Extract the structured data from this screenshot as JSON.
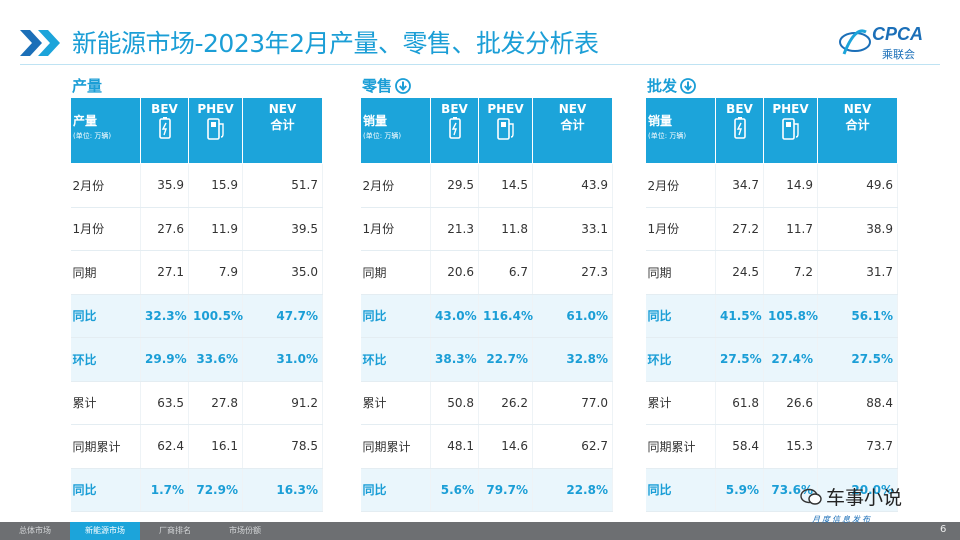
{
  "header": {
    "title": "新能源市场-2023年2月产量、零售、批发分析表",
    "logo": "CPCA",
    "logo_sub": "乘联会"
  },
  "tables": [
    {
      "section": "产量",
      "label": "产量",
      "unit": "(单位: 万辆)",
      "columns": [
        {
          "name": "BEV"
        },
        {
          "name": "PHEV"
        },
        {
          "name": "NEV",
          "sub": "合计"
        }
      ],
      "rows": [
        [
          "2月份",
          "35.9",
          "15.9",
          "51.7"
        ],
        [
          "1月份",
          "27.6",
          "11.9",
          "39.5"
        ],
        [
          "同期",
          "27.1",
          "7.9",
          "35.0"
        ],
        [
          "同比",
          "32.3%",
          "100.5%",
          "47.7%"
        ],
        [
          "环比",
          "29.9%",
          "33.6%",
          "31.0%"
        ],
        [
          "累计",
          "63.5",
          "27.8",
          "91.2"
        ],
        [
          "同期累计",
          "62.4",
          "16.1",
          "78.5"
        ],
        [
          "同比",
          "1.7%",
          "72.9%",
          "16.3%"
        ]
      ]
    },
    {
      "section": "零售",
      "label": "销量",
      "unit": "(单位: 万辆)",
      "columns": [
        {
          "name": "BEV"
        },
        {
          "name": "PHEV"
        },
        {
          "name": "NEV",
          "sub": "合计"
        }
      ],
      "rows": [
        [
          "2月份",
          "29.5",
          "14.5",
          "43.9"
        ],
        [
          "1月份",
          "21.3",
          "11.8",
          "33.1"
        ],
        [
          "同期",
          "20.6",
          "6.7",
          "27.3"
        ],
        [
          "同比",
          "43.0%",
          "116.4%",
          "61.0%"
        ],
        [
          "环比",
          "38.3%",
          "22.7%",
          "32.8%"
        ],
        [
          "累计",
          "50.8",
          "26.2",
          "77.0"
        ],
        [
          "同期累计",
          "48.1",
          "14.6",
          "62.7"
        ],
        [
          "同比",
          "5.6%",
          "79.7%",
          "22.8%"
        ]
      ]
    },
    {
      "section": "批发",
      "label": "销量",
      "unit": "(单位: 万辆)",
      "columns": [
        {
          "name": "BEV"
        },
        {
          "name": "PHEV"
        },
        {
          "name": "NEV",
          "sub": "合计"
        }
      ],
      "rows": [
        [
          "2月份",
          "34.7",
          "14.9",
          "49.6"
        ],
        [
          "1月份",
          "27.2",
          "11.7",
          "38.9"
        ],
        [
          "同期",
          "24.5",
          "7.2",
          "31.7"
        ],
        [
          "同比",
          "41.5%",
          "105.8%",
          "56.1%"
        ],
        [
          "环比",
          "27.5%",
          "27.4%",
          "27.5%"
        ],
        [
          "累计",
          "61.8",
          "26.6",
          "88.4"
        ],
        [
          "同期累计",
          "58.4",
          "15.3",
          "73.7"
        ],
        [
          "同比",
          "5.9%",
          "73.6%",
          "20.0%"
        ]
      ]
    }
  ],
  "footer": {
    "tabs": [
      "总体市场",
      "新能源市场",
      "厂商排名",
      "市场份额"
    ],
    "tagline": "月度信息发布",
    "watermark": "车事小说",
    "page": "6"
  }
}
